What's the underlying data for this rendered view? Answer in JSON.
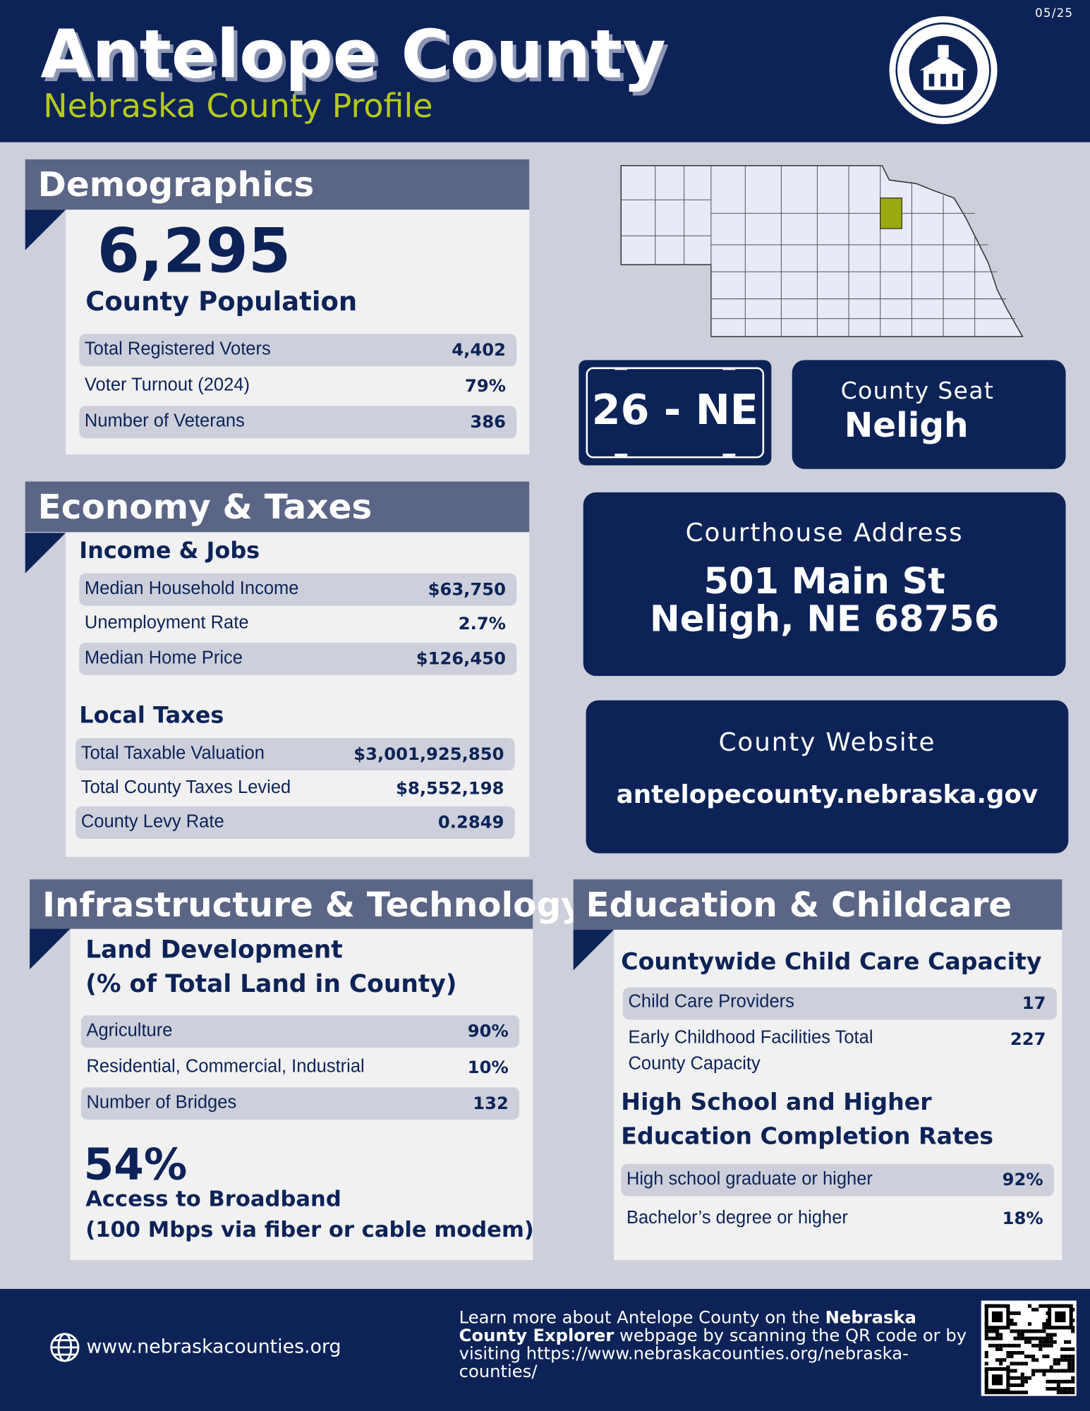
{
  "header": {
    "title": "Antelope County",
    "subtitle": "Nebraska County Profile",
    "date": "05/25"
  },
  "demographics": {
    "heading": "Demographics",
    "population": "6,295",
    "population_label": "County Population",
    "rows": [
      {
        "label": "Total Registered Voters",
        "value": "4,402"
      },
      {
        "label": "Voter Turnout (2024)",
        "value": "79%"
      },
      {
        "label": "Number of Veterans",
        "value": "386"
      }
    ]
  },
  "economy": {
    "heading": "Economy & Taxes",
    "income_heading": "Income & Jobs",
    "income_rows": [
      {
        "label": "Median Household Income",
        "value": "$63,750"
      },
      {
        "label": "Unemployment Rate",
        "value": "2.7%"
      },
      {
        "label": "Median Home Price",
        "value": "$126,450"
      }
    ],
    "taxes_heading": "Local Taxes",
    "taxes_rows": [
      {
        "label": "Total Taxable Valuation",
        "value": "$3,001,925,850"
      },
      {
        "label": "Total County Taxes Levied",
        "value": "$8,552,198"
      },
      {
        "label": "County Levy Rate",
        "value": "0.2849"
      }
    ]
  },
  "plate": "26 - NE",
  "county_seat": {
    "label": "County Seat",
    "value": "Neligh"
  },
  "courthouse": {
    "label": "Courthouse Address",
    "line1": "501 Main St",
    "line2": "Neligh, NE 68756"
  },
  "website": {
    "label": "County Website",
    "value": "antelopecounty.nebraska.gov"
  },
  "infrastructure": {
    "heading": "Infrastructure & Technology",
    "land_heading_1": "Land Development",
    "land_heading_2": "(% of Total Land in County)",
    "rows": [
      {
        "label": "Agriculture",
        "value": "90%"
      },
      {
        "label": "Residential, Commercial, Industrial",
        "value": "10%"
      },
      {
        "label": "Number of Bridges",
        "value": "132"
      }
    ],
    "broadband_value": "54%",
    "broadband_label_1": "Access to Broadband",
    "broadband_label_2": "(100 Mbps via fiber or cable modem)"
  },
  "education": {
    "heading": "Education & Childcare",
    "childcare_heading": "Countywide Child Care Capacity",
    "childcare_rows": [
      {
        "label": "Child Care Providers",
        "value": "17"
      },
      {
        "label": "Early Childhood Facilities Total County Capacity",
        "value": "227"
      }
    ],
    "completion_heading_1": "High School and Higher",
    "completion_heading_2": "Education Completion Rates",
    "completion_rows": [
      {
        "label": "High school graduate or higher",
        "value": "92%"
      },
      {
        "label": "Bachelor’s degree or higher",
        "value": "18%"
      }
    ]
  },
  "footer": {
    "url": "www.nebraskacounties.org",
    "text_1": "Learn more about Antelope County on the ",
    "text_bold": "Nebraska County Explorer",
    "text_2": " webpage by scanning the QR code or by visiting https://www.nebraskacounties.org/nebraska-counties/"
  }
}
